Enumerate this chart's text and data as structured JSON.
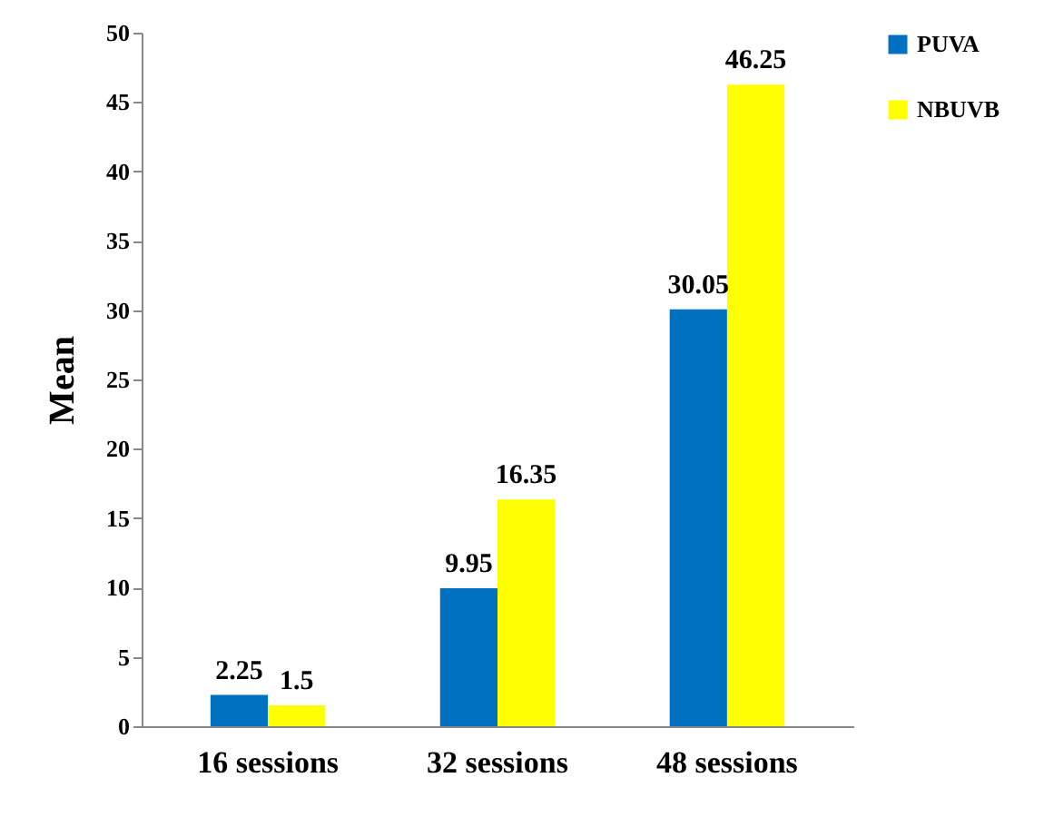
{
  "chart_data": {
    "type": "bar",
    "ylabel": "Mean",
    "categories": [
      "16 sessions",
      "32 sessions",
      "48 sessions"
    ],
    "series": [
      {
        "name": "PUVA",
        "color": "#0070c0",
        "values": [
          2.25,
          9.95,
          30.05
        ]
      },
      {
        "name": "NBUVB",
        "color": "#ffff00",
        "values": [
          1.5,
          16.35,
          46.25
        ]
      }
    ],
    "ylim": [
      0,
      50
    ],
    "yticks": [
      0,
      5,
      10,
      15,
      20,
      25,
      30,
      35,
      40,
      45,
      50
    ],
    "grid": false,
    "legend": "right",
    "data_labels": true
  }
}
